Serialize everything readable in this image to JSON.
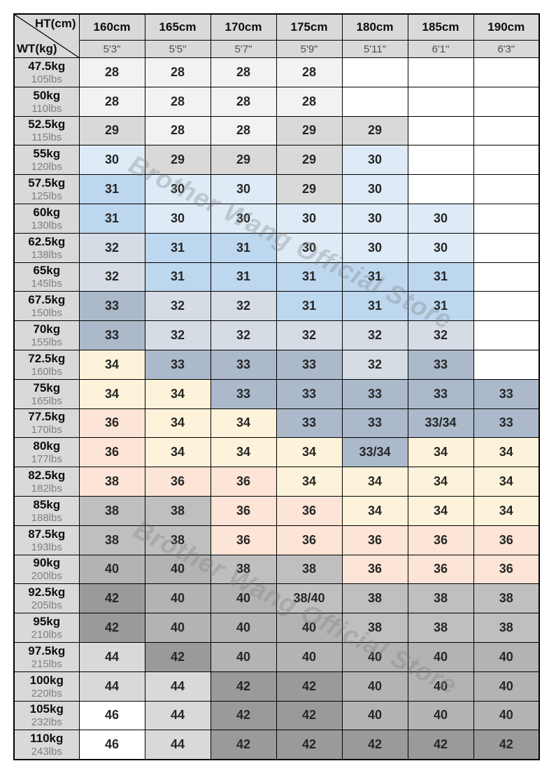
{
  "watermark": {
    "text": "Brother Wang Official Store"
  },
  "colors": {
    "header_bg": "#d9d9d9",
    "border": "#000000",
    "s28": "#f2f2f2",
    "s29": "#d9d9d9",
    "s30": "#deebf7",
    "s31": "#bdd7ee",
    "s32": "#d6dce4",
    "s33": "#abb9cb",
    "s34": "#fcf3da",
    "s36": "#fce4d6",
    "s38": "#bfbfbf",
    "s40": "#b3b3b3",
    "s42": "#9a9a9a",
    "s44": "#d9d9d9",
    "s46": "#ffffff",
    "blank": "#ffffff"
  },
  "chart_data": {
    "type": "table",
    "title": "Size chart: height (cm/ft) vs weight (kg/lbs), cell = recommended size",
    "corner": {
      "top_right_label": "HT(cm)",
      "bottom_left_label": "WT(kg)"
    },
    "height_columns": [
      {
        "cm": "160cm",
        "ft": "5'3\""
      },
      {
        "cm": "165cm",
        "ft": "5'5\""
      },
      {
        "cm": "170cm",
        "ft": "5'7\""
      },
      {
        "cm": "175cm",
        "ft": "5'9\""
      },
      {
        "cm": "180cm",
        "ft": "5'11\""
      },
      {
        "cm": "185cm",
        "ft": "6'1\""
      },
      {
        "cm": "190cm",
        "ft": "6'3\""
      }
    ],
    "weight_rows": [
      {
        "kg": "47.5kg",
        "lbs": "105lbs",
        "cells": [
          {
            "v": "28",
            "c": "s28"
          },
          {
            "v": "28",
            "c": "s28"
          },
          {
            "v": "28",
            "c": "s28"
          },
          {
            "v": "28",
            "c": "s28"
          },
          {
            "v": "",
            "c": "blank"
          },
          {
            "v": "",
            "c": "blank"
          },
          {
            "v": "",
            "c": "blank"
          }
        ]
      },
      {
        "kg": "50kg",
        "lbs": "110lbs",
        "cells": [
          {
            "v": "28",
            "c": "s28"
          },
          {
            "v": "28",
            "c": "s28"
          },
          {
            "v": "28",
            "c": "s28"
          },
          {
            "v": "28",
            "c": "s28"
          },
          {
            "v": "",
            "c": "blank"
          },
          {
            "v": "",
            "c": "blank"
          },
          {
            "v": "",
            "c": "blank"
          }
        ]
      },
      {
        "kg": "52.5kg",
        "lbs": "115lbs",
        "cells": [
          {
            "v": "29",
            "c": "s29"
          },
          {
            "v": "28",
            "c": "s28"
          },
          {
            "v": "28",
            "c": "s28"
          },
          {
            "v": "29",
            "c": "s29"
          },
          {
            "v": "29",
            "c": "s29"
          },
          {
            "v": "",
            "c": "blank"
          },
          {
            "v": "",
            "c": "blank"
          }
        ]
      },
      {
        "kg": "55kg",
        "lbs": "120lbs",
        "cells": [
          {
            "v": "30",
            "c": "s30"
          },
          {
            "v": "29",
            "c": "s29"
          },
          {
            "v": "29",
            "c": "s29"
          },
          {
            "v": "29",
            "c": "s29"
          },
          {
            "v": "30",
            "c": "s30"
          },
          {
            "v": "",
            "c": "blank"
          },
          {
            "v": "",
            "c": "blank"
          }
        ]
      },
      {
        "kg": "57.5kg",
        "lbs": "125lbs",
        "cells": [
          {
            "v": "31",
            "c": "s31"
          },
          {
            "v": "30",
            "c": "s30"
          },
          {
            "v": "30",
            "c": "s30"
          },
          {
            "v": "29",
            "c": "s29"
          },
          {
            "v": "30",
            "c": "s30"
          },
          {
            "v": "",
            "c": "blank"
          },
          {
            "v": "",
            "c": "blank"
          }
        ]
      },
      {
        "kg": "60kg",
        "lbs": "130lbs",
        "cells": [
          {
            "v": "31",
            "c": "s31"
          },
          {
            "v": "30",
            "c": "s30"
          },
          {
            "v": "30",
            "c": "s30"
          },
          {
            "v": "30",
            "c": "s30"
          },
          {
            "v": "30",
            "c": "s30"
          },
          {
            "v": "30",
            "c": "s30"
          },
          {
            "v": "",
            "c": "blank"
          }
        ]
      },
      {
        "kg": "62.5kg",
        "lbs": "138lbs",
        "cells": [
          {
            "v": "32",
            "c": "s32"
          },
          {
            "v": "31",
            "c": "s31"
          },
          {
            "v": "31",
            "c": "s31"
          },
          {
            "v": "30",
            "c": "s30"
          },
          {
            "v": "30",
            "c": "s30"
          },
          {
            "v": "30",
            "c": "s30"
          },
          {
            "v": "",
            "c": "blank"
          }
        ]
      },
      {
        "kg": "65kg",
        "lbs": "145lbs",
        "cells": [
          {
            "v": "32",
            "c": "s32"
          },
          {
            "v": "31",
            "c": "s31"
          },
          {
            "v": "31",
            "c": "s31"
          },
          {
            "v": "31",
            "c": "s31"
          },
          {
            "v": "31",
            "c": "s31"
          },
          {
            "v": "31",
            "c": "s31"
          },
          {
            "v": "",
            "c": "blank"
          }
        ]
      },
      {
        "kg": "67.5kg",
        "lbs": "150lbs",
        "cells": [
          {
            "v": "33",
            "c": "s33"
          },
          {
            "v": "32",
            "c": "s32"
          },
          {
            "v": "32",
            "c": "s32"
          },
          {
            "v": "31",
            "c": "s31"
          },
          {
            "v": "31",
            "c": "s31"
          },
          {
            "v": "31",
            "c": "s31"
          },
          {
            "v": "",
            "c": "blank"
          }
        ]
      },
      {
        "kg": "70kg",
        "lbs": "155lbs",
        "cells": [
          {
            "v": "33",
            "c": "s33"
          },
          {
            "v": "32",
            "c": "s32"
          },
          {
            "v": "32",
            "c": "s32"
          },
          {
            "v": "32",
            "c": "s32"
          },
          {
            "v": "32",
            "c": "s32"
          },
          {
            "v": "32",
            "c": "s32"
          },
          {
            "v": "",
            "c": "blank"
          }
        ]
      },
      {
        "kg": "72.5kg",
        "lbs": "160lbs",
        "cells": [
          {
            "v": "34",
            "c": "s34"
          },
          {
            "v": "33",
            "c": "s33"
          },
          {
            "v": "33",
            "c": "s33"
          },
          {
            "v": "33",
            "c": "s33"
          },
          {
            "v": "32",
            "c": "s32"
          },
          {
            "v": "33",
            "c": "s33"
          },
          {
            "v": "",
            "c": "blank"
          }
        ]
      },
      {
        "kg": "75kg",
        "lbs": "165lbs",
        "cells": [
          {
            "v": "34",
            "c": "s34"
          },
          {
            "v": "34",
            "c": "s34"
          },
          {
            "v": "33",
            "c": "s33"
          },
          {
            "v": "33",
            "c": "s33"
          },
          {
            "v": "33",
            "c": "s33"
          },
          {
            "v": "33",
            "c": "s33"
          },
          {
            "v": "33",
            "c": "s33"
          }
        ]
      },
      {
        "kg": "77.5kg",
        "lbs": "170lbs",
        "cells": [
          {
            "v": "36",
            "c": "s36"
          },
          {
            "v": "34",
            "c": "s34"
          },
          {
            "v": "34",
            "c": "s34"
          },
          {
            "v": "33",
            "c": "s33"
          },
          {
            "v": "33",
            "c": "s33"
          },
          {
            "v": "33/34",
            "c": "s33"
          },
          {
            "v": "33",
            "c": "s33"
          }
        ]
      },
      {
        "kg": "80kg",
        "lbs": "177lbs",
        "cells": [
          {
            "v": "36",
            "c": "s36"
          },
          {
            "v": "34",
            "c": "s34"
          },
          {
            "v": "34",
            "c": "s34"
          },
          {
            "v": "34",
            "c": "s34"
          },
          {
            "v": "33/34",
            "c": "s33"
          },
          {
            "v": "34",
            "c": "s34"
          },
          {
            "v": "34",
            "c": "s34"
          }
        ]
      },
      {
        "kg": "82.5kg",
        "lbs": "182lbs",
        "cells": [
          {
            "v": "38",
            "c": "s36"
          },
          {
            "v": "36",
            "c": "s36"
          },
          {
            "v": "36",
            "c": "s36"
          },
          {
            "v": "34",
            "c": "s34"
          },
          {
            "v": "34",
            "c": "s34"
          },
          {
            "v": "34",
            "c": "s34"
          },
          {
            "v": "34",
            "c": "s34"
          }
        ]
      },
      {
        "kg": "85kg",
        "lbs": "188lbs",
        "cells": [
          {
            "v": "38",
            "c": "s38"
          },
          {
            "v": "38",
            "c": "s38"
          },
          {
            "v": "36",
            "c": "s36"
          },
          {
            "v": "36",
            "c": "s36"
          },
          {
            "v": "34",
            "c": "s34"
          },
          {
            "v": "34",
            "c": "s34"
          },
          {
            "v": "34",
            "c": "s34"
          }
        ]
      },
      {
        "kg": "87.5kg",
        "lbs": "193lbs",
        "cells": [
          {
            "v": "38",
            "c": "s38"
          },
          {
            "v": "38",
            "c": "s38"
          },
          {
            "v": "36",
            "c": "s36"
          },
          {
            "v": "36",
            "c": "s36"
          },
          {
            "v": "36",
            "c": "s36"
          },
          {
            "v": "36",
            "c": "s36"
          },
          {
            "v": "36",
            "c": "s36"
          }
        ]
      },
      {
        "kg": "90kg",
        "lbs": "200lbs",
        "cells": [
          {
            "v": "40",
            "c": "s40"
          },
          {
            "v": "40",
            "c": "s40"
          },
          {
            "v": "38",
            "c": "s38"
          },
          {
            "v": "38",
            "c": "s38"
          },
          {
            "v": "36",
            "c": "s36"
          },
          {
            "v": "36",
            "c": "s36"
          },
          {
            "v": "36",
            "c": "s36"
          }
        ]
      },
      {
        "kg": "92.5kg",
        "lbs": "205lbs",
        "cells": [
          {
            "v": "42",
            "c": "s42"
          },
          {
            "v": "40",
            "c": "s40"
          },
          {
            "v": "40",
            "c": "s40"
          },
          {
            "v": "38/40",
            "c": "s38"
          },
          {
            "v": "38",
            "c": "s38"
          },
          {
            "v": "38",
            "c": "s38"
          },
          {
            "v": "38",
            "c": "s38"
          }
        ]
      },
      {
        "kg": "95kg",
        "lbs": "210lbs",
        "cells": [
          {
            "v": "42",
            "c": "s42"
          },
          {
            "v": "40",
            "c": "s40"
          },
          {
            "v": "40",
            "c": "s40"
          },
          {
            "v": "40",
            "c": "s40"
          },
          {
            "v": "38",
            "c": "s38"
          },
          {
            "v": "38",
            "c": "s38"
          },
          {
            "v": "38",
            "c": "s38"
          }
        ]
      },
      {
        "kg": "97.5kg",
        "lbs": "215lbs",
        "cells": [
          {
            "v": "44",
            "c": "s44"
          },
          {
            "v": "42",
            "c": "s42"
          },
          {
            "v": "40",
            "c": "s40"
          },
          {
            "v": "40",
            "c": "s40"
          },
          {
            "v": "40",
            "c": "s40"
          },
          {
            "v": "40",
            "c": "s40"
          },
          {
            "v": "40",
            "c": "s40"
          }
        ]
      },
      {
        "kg": "100kg",
        "lbs": "220lbs",
        "cells": [
          {
            "v": "44",
            "c": "s44"
          },
          {
            "v": "44",
            "c": "s44"
          },
          {
            "v": "42",
            "c": "s42"
          },
          {
            "v": "42",
            "c": "s42"
          },
          {
            "v": "40",
            "c": "s40"
          },
          {
            "v": "40",
            "c": "s40"
          },
          {
            "v": "40",
            "c": "s40"
          }
        ]
      },
      {
        "kg": "105kg",
        "lbs": "232lbs",
        "cells": [
          {
            "v": "46",
            "c": "s46"
          },
          {
            "v": "44",
            "c": "s44"
          },
          {
            "v": "42",
            "c": "s42"
          },
          {
            "v": "42",
            "c": "s42"
          },
          {
            "v": "40",
            "c": "s40"
          },
          {
            "v": "40",
            "c": "s40"
          },
          {
            "v": "40",
            "c": "s40"
          }
        ]
      },
      {
        "kg": "110kg",
        "lbs": "243lbs",
        "cells": [
          {
            "v": "46",
            "c": "s46"
          },
          {
            "v": "44",
            "c": "s44"
          },
          {
            "v": "42",
            "c": "s42"
          },
          {
            "v": "42",
            "c": "s42"
          },
          {
            "v": "42",
            "c": "s42"
          },
          {
            "v": "42",
            "c": "s42"
          },
          {
            "v": "42",
            "c": "s42"
          }
        ]
      }
    ]
  }
}
